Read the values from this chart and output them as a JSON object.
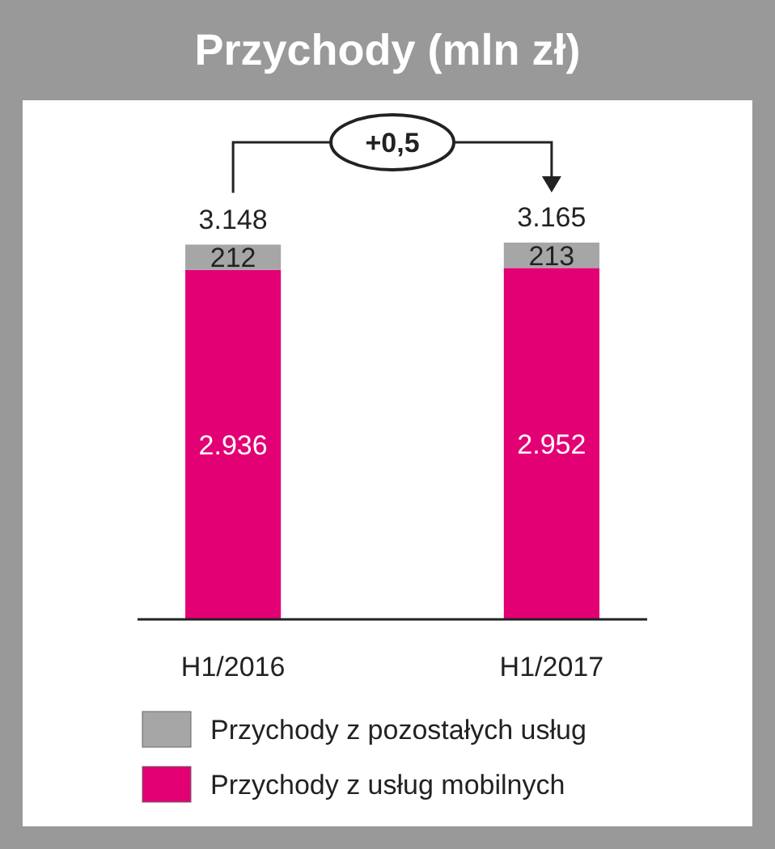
{
  "chart_data": {
    "type": "bar",
    "title": "Przychody (mln zł)",
    "categories": [
      "H1/2016",
      "H1/2017"
    ],
    "stacked": true,
    "legend": "bottom",
    "series": [
      {
        "name": "Przychody z usług mobilnych",
        "color": "#e20074",
        "values": [
          2936,
          2952
        ],
        "value_labels": [
          "2.936",
          "2.952"
        ]
      },
      {
        "name": "Przychody z pozostałych usług",
        "color": "#a6a6a6",
        "values": [
          212,
          213
        ],
        "value_labels": [
          "212",
          "213"
        ]
      }
    ],
    "totals": [
      "3.148",
      "3.165"
    ],
    "annotations": [
      "+0,5"
    ]
  }
}
